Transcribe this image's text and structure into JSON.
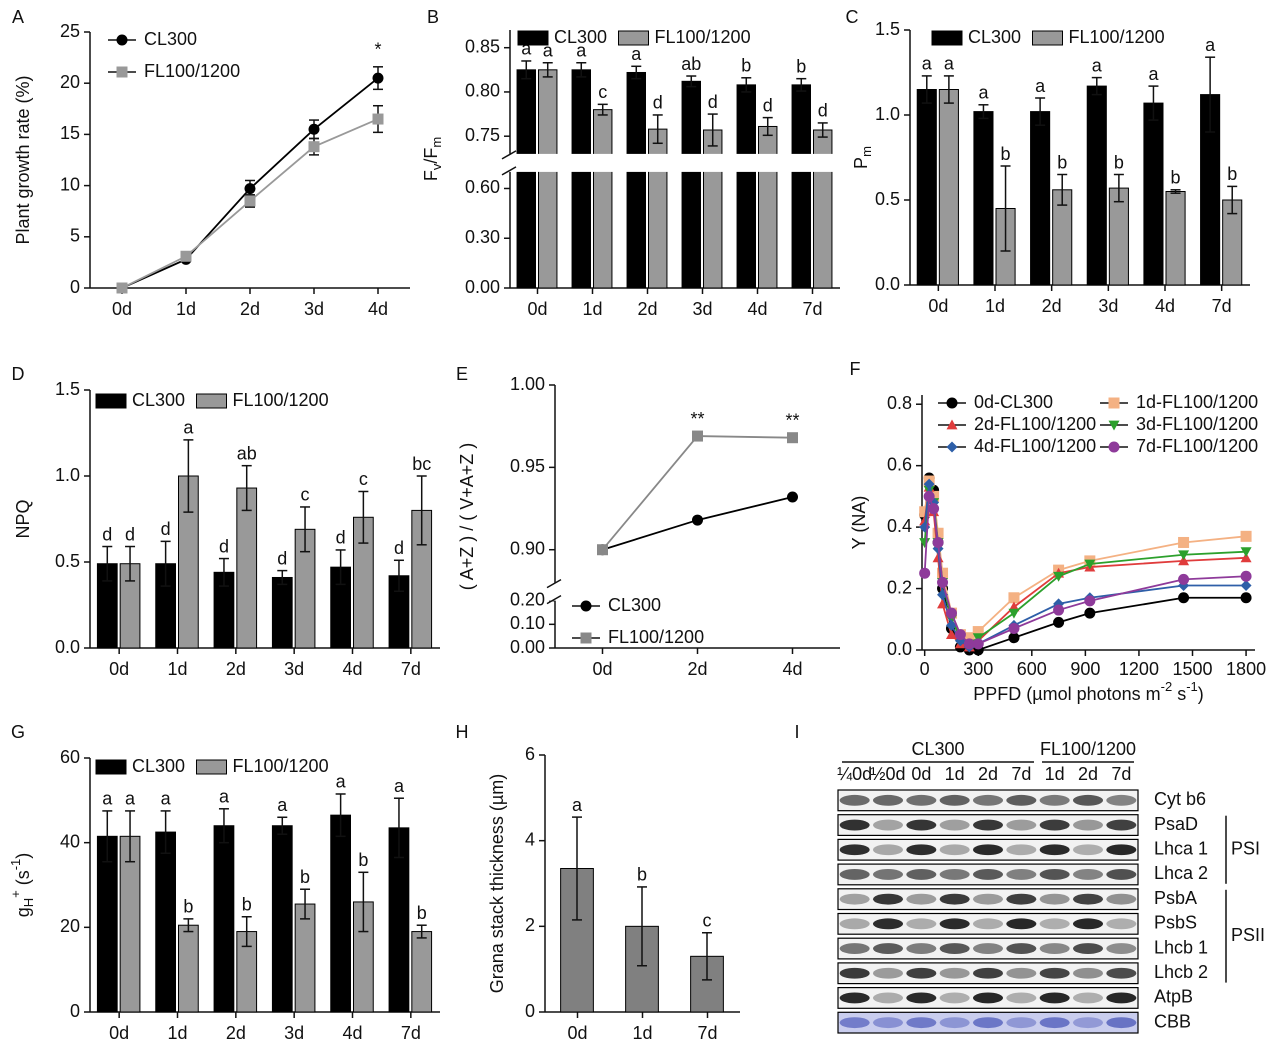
{
  "chart_data": [
    {
      "type": "line",
      "panel": "A",
      "categories": [
        "0d",
        "1d",
        "2d",
        "3d",
        "4d"
      ],
      "ylabel": [
        "Plant growth rate (%)"
      ],
      "ylabel_shift": [
        "base"
      ],
      "series": [
        {
          "name": "CL300",
          "color": "#000000",
          "marker": "circle",
          "values": [
            0,
            2.8,
            9.7,
            15.5,
            20.5
          ],
          "errors": [
            0.1,
            0.2,
            0.8,
            0.9,
            1.1
          ]
        },
        {
          "name": "FL100/1200",
          "color": "#999999",
          "marker": "square",
          "values": [
            0,
            3.1,
            8.5,
            13.8,
            16.5
          ],
          "errors": [
            0.1,
            0.2,
            0.6,
            0.8,
            1.3
          ]
        }
      ],
      "ylim": [
        0,
        25
      ],
      "yticks": [
        0,
        5,
        10,
        15,
        20,
        25
      ],
      "legend": "upper left",
      "annotations": [
        {
          "text": "*",
          "category": "4d"
        }
      ]
    },
    {
      "type": "bar",
      "panel": "B",
      "categories": [
        "0d",
        "1d",
        "2d",
        "3d",
        "4d",
        "7d"
      ],
      "ylabel": [
        "F",
        "v",
        "/F",
        "m"
      ],
      "ylabel_shift": [
        "base",
        "sub",
        "base",
        "sub"
      ],
      "series": [
        {
          "name": "CL300",
          "color": "#000000",
          "values": [
            0.825,
            0.825,
            0.822,
            0.812,
            0.808,
            0.808
          ],
          "errors": [
            0.01,
            0.008,
            0.007,
            0.006,
            0.008,
            0.007
          ],
          "letters": [
            "a",
            "a",
            "a",
            "ab",
            "b",
            "b"
          ]
        },
        {
          "name": "FL100/1200",
          "color": "#999999",
          "values": [
            0.825,
            0.78,
            0.758,
            0.757,
            0.761,
            0.757
          ],
          "errors": [
            0.008,
            0.006,
            0.016,
            0.018,
            0.01,
            0.008
          ],
          "letters": [
            "a",
            "c",
            "d",
            "d",
            "d",
            "d"
          ]
        }
      ],
      "ylim": [
        0,
        0.87
      ],
      "ybreak": [
        0.7,
        0.73
      ],
      "yticks": [
        {
          "value": 0,
          "label": "0.00"
        },
        {
          "value": 0.3,
          "label": "0.30"
        },
        {
          "value": 0.6,
          "label": "0.60"
        },
        {
          "value": 0.75,
          "label": "0.75"
        },
        {
          "value": 0.8,
          "label": "0.80"
        },
        {
          "value": 0.85,
          "label": "0.85"
        }
      ],
      "legend": "top"
    },
    {
      "type": "bar",
      "panel": "C",
      "categories": [
        "0d",
        "1d",
        "2d",
        "3d",
        "4d",
        "7d"
      ],
      "ylabel": [
        "P",
        "m"
      ],
      "ylabel_shift": [
        "base",
        "sub"
      ],
      "series": [
        {
          "name": "CL300",
          "color": "#000000",
          "values": [
            1.15,
            1.02,
            1.02,
            1.17,
            1.07,
            1.12
          ],
          "errors": [
            0.08,
            0.04,
            0.08,
            0.05,
            0.1,
            0.22
          ],
          "letters": [
            "a",
            "a",
            "a",
            "a",
            "a",
            "a"
          ]
        },
        {
          "name": "FL100/1200",
          "color": "#999999",
          "values": [
            1.15,
            0.45,
            0.56,
            0.57,
            0.55,
            0.5
          ],
          "errors": [
            0.08,
            0.25,
            0.09,
            0.08,
            0.01,
            0.08
          ],
          "letters": [
            "a",
            "b",
            "b",
            "b",
            "b",
            "b"
          ]
        }
      ],
      "ylim": [
        0,
        1.5
      ],
      "yticks": [
        {
          "value": 0,
          "label": "0.0"
        },
        {
          "value": 0.5,
          "label": "0.5"
        },
        {
          "value": 1,
          "label": "1.0"
        },
        {
          "value": 1.5,
          "label": "1.5"
        }
      ],
      "legend": "top"
    },
    {
      "type": "bar",
      "panel": "D",
      "categories": [
        "0d",
        "1d",
        "2d",
        "3d",
        "4d",
        "7d"
      ],
      "ylabel": [
        "NPQ"
      ],
      "ylabel_shift": [
        "base"
      ],
      "series": [
        {
          "name": "CL300",
          "color": "#000000",
          "values": [
            0.49,
            0.49,
            0.44,
            0.41,
            0.47,
            0.42
          ],
          "errors": [
            0.1,
            0.13,
            0.08,
            0.04,
            0.1,
            0.09
          ],
          "letters": [
            "d",
            "d",
            "d",
            "d",
            "d",
            "d"
          ]
        },
        {
          "name": "FL100/1200",
          "color": "#999999",
          "values": [
            0.49,
            1.0,
            0.93,
            0.69,
            0.76,
            0.8
          ],
          "errors": [
            0.1,
            0.21,
            0.13,
            0.13,
            0.15,
            0.2
          ],
          "letters": [
            "d",
            "a",
            "ab",
            "c",
            "c",
            "bc"
          ]
        }
      ],
      "ylim": [
        0,
        1.5
      ],
      "yticks": [
        {
          "value": 0,
          "label": "0.0"
        },
        {
          "value": 0.5,
          "label": "0.5"
        },
        {
          "value": 1,
          "label": "1.0"
        },
        {
          "value": 1.5,
          "label": "1.5"
        }
      ],
      "legend": "top"
    },
    {
      "type": "line",
      "panel": "E",
      "categories": [
        "0d",
        "2d",
        "4d"
      ],
      "ylabel": [
        "( A+Z ) / ( V+A+Z )"
      ],
      "ylabel_shift": [
        "base"
      ],
      "series": [
        {
          "name": "CL300",
          "color": "#000000",
          "marker": "circle",
          "values": [
            0.9,
            0.918,
            0.932
          ]
        },
        {
          "name": "FL100/1200",
          "color": "#888888",
          "marker": "square",
          "values": [
            0.9,
            0.969,
            0.968
          ]
        }
      ],
      "ylim": [
        0,
        1.0
      ],
      "ybreak": [
        0.2,
        0.88
      ],
      "yticks": [
        {
          "value": 0,
          "label": "0.00"
        },
        {
          "value": 0.1,
          "label": "0.10"
        },
        {
          "value": 0.2,
          "label": "0.20"
        },
        {
          "value": 0.9,
          "label": "0.90"
        },
        {
          "value": 0.95,
          "label": "0.95"
        },
        {
          "value": 1,
          "label": "1.00"
        }
      ],
      "legend": "lower left",
      "annotations": [
        {
          "text": "**",
          "category": "2d"
        },
        {
          "text": "**",
          "category": "4d"
        }
      ]
    },
    {
      "type": "line",
      "panel": "F",
      "x": [
        0,
        25,
        50,
        75,
        100,
        150,
        200,
        250,
        300,
        500,
        750,
        925,
        1450,
        1800
      ],
      "ylabel": [
        "Y (NA)"
      ],
      "ylabel_shift": [
        "base"
      ],
      "xlabel": [
        "PPFD (µmol photons m",
        "-2",
        " s",
        "-1",
        ")"
      ],
      "xlabel_shift": [
        "base",
        "sup",
        "base",
        "sup",
        "base"
      ],
      "series": [
        {
          "name": "0d-CL300",
          "color": "#000000",
          "marker": "circle",
          "values": [
            0.44,
            0.56,
            0.52,
            0.35,
            0.2,
            0.07,
            0.01,
            0.0,
            0.0,
            0.04,
            0.09,
            0.12,
            0.17,
            0.17
          ]
        },
        {
          "name": "1d-FL100/1200",
          "color": "#f4b183",
          "marker": "square",
          "values": [
            0.45,
            0.55,
            0.5,
            0.38,
            0.25,
            0.12,
            0.05,
            0.04,
            0.06,
            0.17,
            0.26,
            0.29,
            0.35,
            0.37
          ]
        },
        {
          "name": "2d-FL100/1200",
          "color": "#e03c3c",
          "marker": "triangle",
          "values": [
            0.42,
            0.53,
            0.45,
            0.3,
            0.15,
            0.05,
            0.02,
            0.01,
            0.03,
            0.14,
            0.25,
            0.27,
            0.29,
            0.3
          ]
        },
        {
          "name": "3d-FL100/1200",
          "color": "#2ca02c",
          "marker": "triangle-down",
          "values": [
            0.35,
            0.52,
            0.48,
            0.35,
            0.22,
            0.1,
            0.04,
            0.02,
            0.04,
            0.12,
            0.24,
            0.28,
            0.31,
            0.32
          ]
        },
        {
          "name": "4d-FL100/1200",
          "color": "#2e5fa8",
          "marker": "diamond",
          "values": [
            0.4,
            0.54,
            0.48,
            0.33,
            0.18,
            0.08,
            0.03,
            0.01,
            0.02,
            0.08,
            0.15,
            0.17,
            0.21,
            0.21
          ]
        },
        {
          "name": "7d-FL100/1200",
          "color": "#8e3a9a",
          "marker": "circle",
          "values": [
            0.25,
            0.5,
            0.46,
            0.35,
            0.22,
            0.12,
            0.05,
            0.02,
            0.02,
            0.07,
            0.13,
            0.16,
            0.23,
            0.24
          ]
        }
      ],
      "xlim": [
        -15,
        1850
      ],
      "xticks": [
        0,
        300,
        600,
        900,
        1200,
        1500,
        1800
      ],
      "ylim": [
        0,
        0.83
      ],
      "yticks": [
        {
          "value": 0,
          "label": "0.0"
        },
        {
          "value": 0.2,
          "label": "0.2"
        },
        {
          "value": 0.4,
          "label": "0.4"
        },
        {
          "value": 0.6,
          "label": "0.6"
        },
        {
          "value": 0.8,
          "label": "0.8"
        }
      ],
      "legend": "upper right"
    },
    {
      "type": "bar",
      "panel": "G",
      "categories": [
        "0d",
        "1d",
        "2d",
        "3d",
        "4d",
        "7d"
      ],
      "ylabel": [
        "g",
        "H",
        "+",
        " (s",
        "-1",
        ")"
      ],
      "ylabel_shift": [
        "base",
        "sub",
        "sup",
        "base",
        "sup",
        "base"
      ],
      "series": [
        {
          "name": "CL300",
          "color": "#000000",
          "values": [
            41.5,
            42.5,
            44,
            44,
            46.5,
            43.5
          ],
          "errors": [
            6,
            5,
            4,
            2,
            5,
            7
          ],
          "letters": [
            "a",
            "a",
            "a",
            "a",
            "a",
            "a"
          ]
        },
        {
          "name": "FL100/1200",
          "color": "#999999",
          "values": [
            41.5,
            20.5,
            19,
            25.5,
            26,
            19
          ],
          "errors": [
            6,
            1.5,
            3.5,
            3.5,
            7,
            1.5
          ],
          "letters": [
            "a",
            "b",
            "b",
            "b",
            "b",
            "b"
          ]
        }
      ],
      "ylim": [
        0,
        60
      ],
      "yticks": [
        0,
        20,
        40,
        60
      ],
      "legend": "top"
    },
    {
      "type": "bar",
      "panel": "H",
      "categories": [
        "0d",
        "1d",
        "7d"
      ],
      "ylabel": [
        "Grana stack thickness (µm)"
      ],
      "ylabel_shift": [
        "base"
      ],
      "series": [
        {
          "color": "#808080",
          "values": [
            3.35,
            2.0,
            1.3
          ],
          "errors": [
            1.2,
            0.92,
            0.55
          ],
          "letters": [
            "a",
            "b",
            "c"
          ]
        }
      ],
      "ylim": [
        0,
        6
      ],
      "yticks": [
        0,
        2,
        4,
        6
      ]
    },
    {
      "type": "blot",
      "panel": "I",
      "groups": [
        {
          "name": "CL300",
          "lanes": [
            "¼0d",
            "½0d",
            "0d",
            "1d",
            "2d",
            "7d"
          ]
        },
        {
          "name": "FL100/1200",
          "lanes": [
            "1d",
            "2d",
            "7d"
          ]
        }
      ],
      "rows": [
        "Cyt b6",
        {
          "name": "PSI",
          "proteins": [
            "PsaD",
            "Lhca 1",
            "Lhca 2"
          ]
        },
        {
          "name": "PSII",
          "proteins": [
            "PsbA",
            "PsbS",
            "Lhcb 1",
            "Lhcb 2"
          ]
        },
        "AtpB",
        "CBB"
      ]
    }
  ]
}
